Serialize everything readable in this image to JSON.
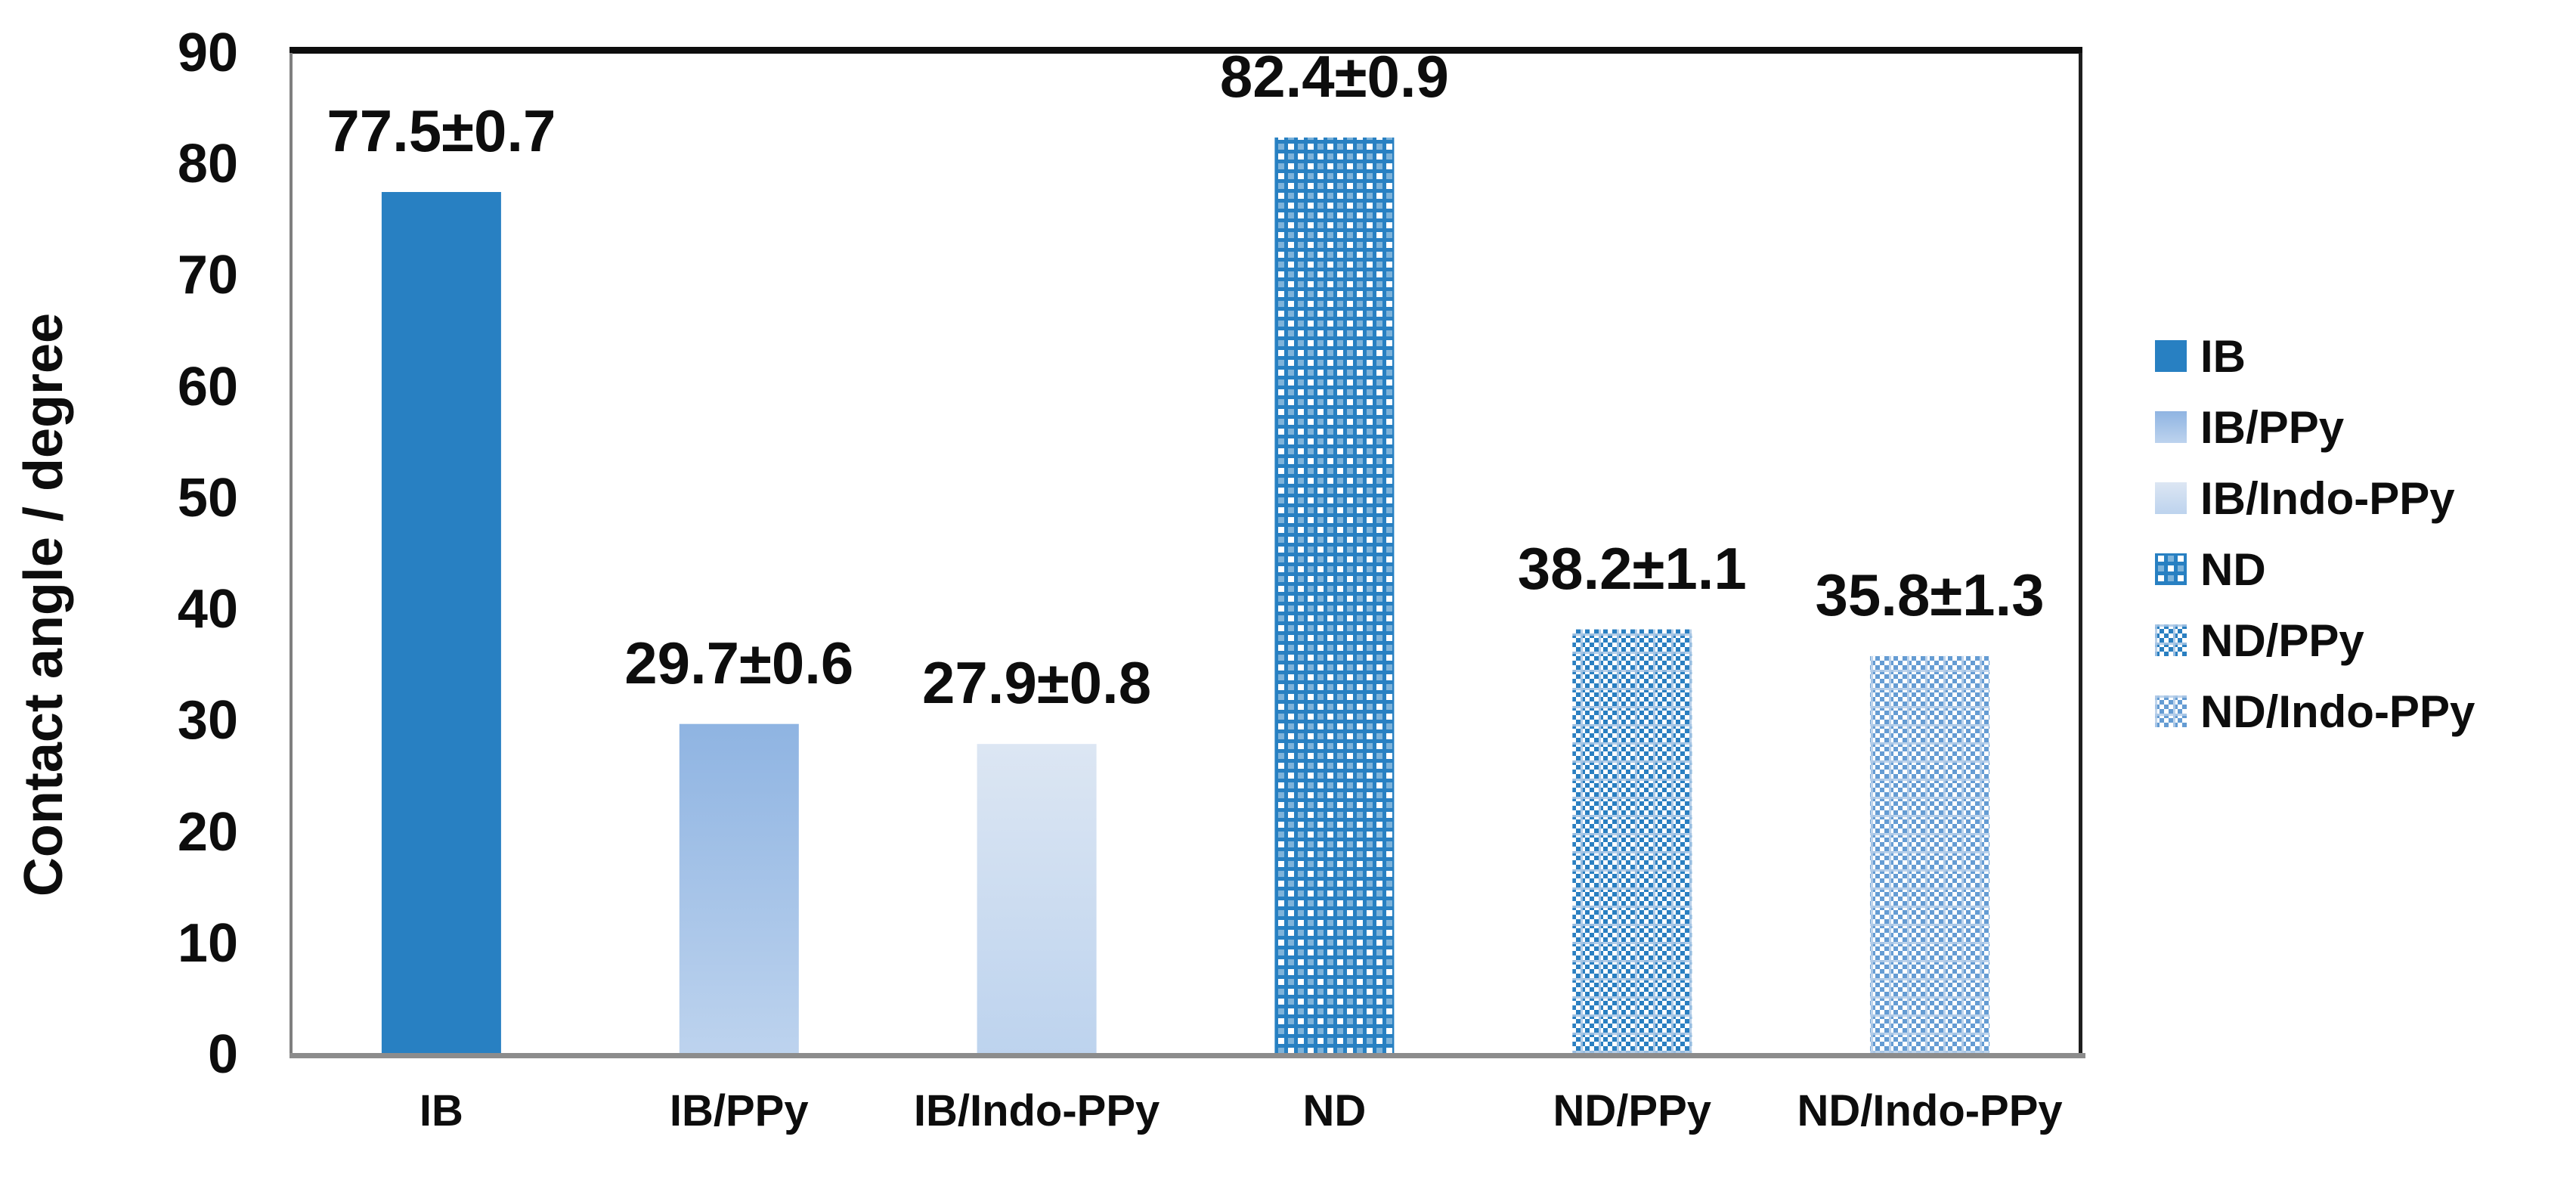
{
  "chart_data": {
    "type": "bar",
    "title": "",
    "ylabel": "Contact angle / degree",
    "xlabel": "",
    "ylim": [
      0,
      90
    ],
    "yticks": [
      0,
      10,
      20,
      30,
      40,
      50,
      60,
      70,
      80,
      90
    ],
    "grid": false,
    "legend_position": "right",
    "categories": [
      "IB",
      "IB/PPy",
      "IB/Indo-PPy",
      "ND",
      "ND/PPy",
      "ND/Indo-PPy"
    ],
    "values": [
      77.5,
      29.7,
      27.9,
      82.4,
      38.2,
      35.8
    ],
    "errors": [
      0.7,
      0.6,
      0.8,
      0.9,
      1.1,
      1.3
    ],
    "data_labels": [
      "77.5±0.7",
      "29.7±0.6",
      "27.9±0.8",
      "82.4±0.9",
      "38.2±1.1",
      "35.8±1.3"
    ],
    "legend": [
      "IB",
      "IB/PPy",
      "IB/Indo-PPy",
      "ND",
      "ND/PPy",
      "ND/Indo-PPy"
    ],
    "styles": [
      {
        "kind": "solid",
        "color": "#2880C2"
      },
      {
        "kind": "gradient",
        "from": "#8FB4E2",
        "to": "#BDD3EE"
      },
      {
        "kind": "gradient",
        "from": "#DCE6F3",
        "to": "#BDD3EE"
      },
      {
        "kind": "dots",
        "bg": "#2880C2",
        "fg": "#FFFFFF"
      },
      {
        "kind": "check",
        "fg": "#2A7FC1",
        "bg": "#FFFFFF",
        "grid": "#A9C7E5"
      },
      {
        "kind": "check-light",
        "fg": "#659CD3",
        "bg": "#FFFFFF",
        "grid": "#B3CDE9"
      }
    ],
    "colors": {
      "plot_border_top": "#0D0D0D",
      "plot_border_side": "#7F7F7F",
      "x_axis_line": "#8C8C8C",
      "text": "#0D0D0D"
    }
  }
}
